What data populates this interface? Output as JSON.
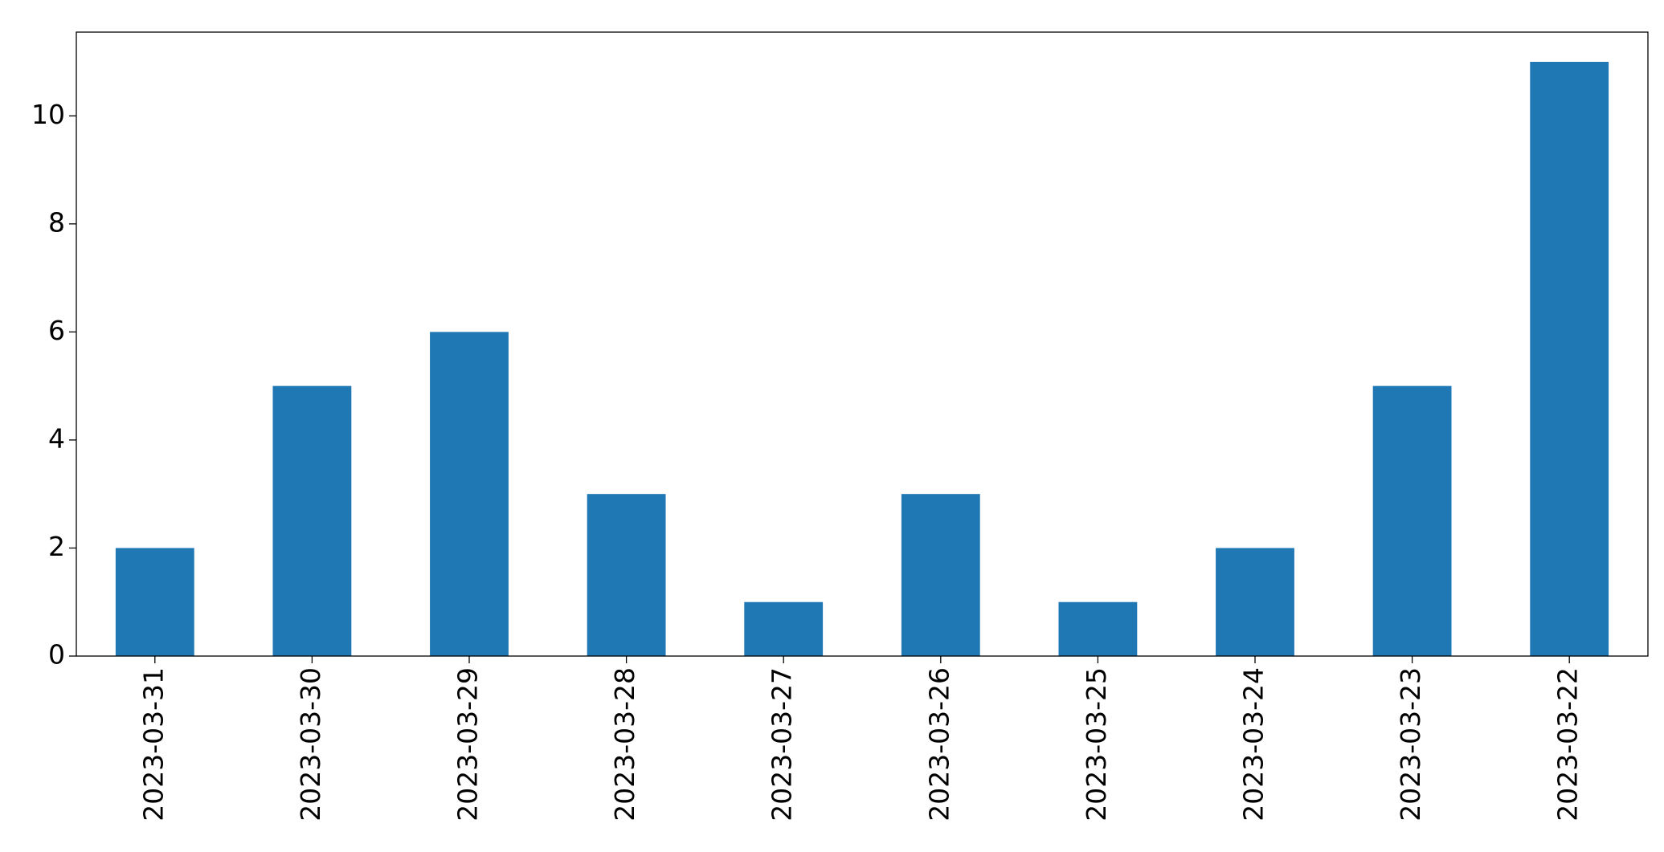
{
  "chart_data": {
    "type": "bar",
    "categories": [
      "2023-03-31",
      "2023-03-30",
      "2023-03-29",
      "2023-03-28",
      "2023-03-27",
      "2023-03-26",
      "2023-03-25",
      "2023-03-24",
      "2023-03-23",
      "2023-03-22"
    ],
    "values": [
      2,
      5,
      6,
      3,
      1,
      3,
      1,
      2,
      5,
      11
    ],
    "color": "#1f77b4",
    "ylim": [
      0,
      11.55
    ],
    "yticks": [
      0,
      2,
      4,
      6,
      8,
      10
    ],
    "grid": false
  }
}
